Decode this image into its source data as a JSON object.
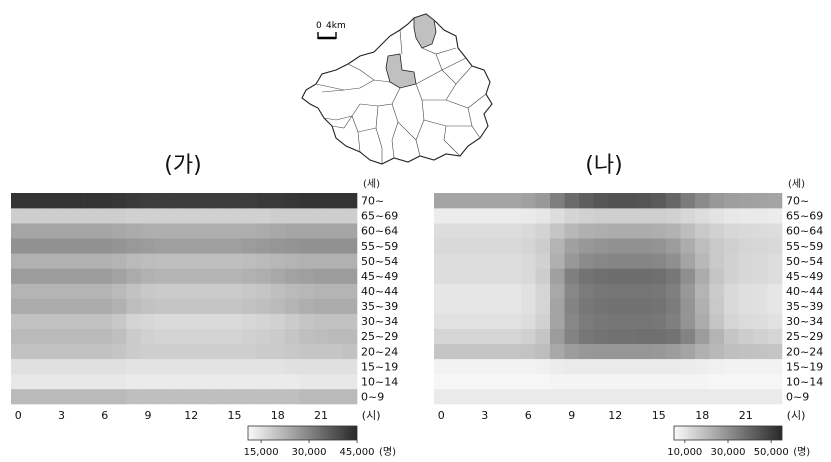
{
  "map": {
    "scale_zero": "0",
    "scale_dist": "4km"
  },
  "chart_data": [
    {
      "type": "heatmap",
      "title": "(가)",
      "x_ticks": [
        "0",
        "3",
        "6",
        "9",
        "12",
        "15",
        "18",
        "21"
      ],
      "x_unit": "(시)",
      "hours": 24,
      "y_unit": "(세)",
      "age_groups": [
        "0~9",
        "10~14",
        "15~19",
        "20~24",
        "25~29",
        "30~34",
        "35~39",
        "40~44",
        "45~49",
        "50~54",
        "55~59",
        "60~64",
        "65~69",
        "70~"
      ],
      "colorbar_ticks": [
        "15,000",
        "30,000",
        "45,000"
      ],
      "colorbar_unit": "(명)",
      "vmin": 10000,
      "vmax": 45000,
      "values": [
        [
          21000,
          21000,
          21000,
          21000,
          21000,
          21000,
          21000,
          21000,
          20000,
          20000,
          20000,
          20000,
          20000,
          20000,
          20000,
          20000,
          20000,
          20000,
          20000,
          20000,
          21000,
          21000,
          21000,
          21000
        ],
        [
          13000,
          13000,
          13000,
          13000,
          13000,
          13000,
          13000,
          13000,
          12500,
          12500,
          12500,
          12500,
          12500,
          12500,
          12500,
          12500,
          12500,
          12500,
          12500,
          12500,
          13000,
          13000,
          13000,
          13000
        ],
        [
          14500,
          14500,
          14500,
          14500,
          14500,
          14500,
          14500,
          14500,
          14000,
          14000,
          14000,
          14000,
          14000,
          14000,
          14000,
          14000,
          14000,
          14000,
          14000,
          14500,
          14500,
          14500,
          14500,
          14500
        ],
        [
          19500,
          19500,
          19500,
          19500,
          19500,
          19500,
          19500,
          19000,
          18000,
          17500,
          17500,
          17500,
          17500,
          17500,
          17500,
          17500,
          17500,
          18000,
          18000,
          18500,
          19000,
          19000,
          19000,
          19500
        ],
        [
          21000,
          21000,
          21000,
          21000,
          21000,
          21000,
          21000,
          20000,
          18000,
          17000,
          16500,
          16500,
          16500,
          16500,
          16500,
          16500,
          17000,
          17500,
          18000,
          19000,
          20000,
          20500,
          21000,
          21000
        ],
        [
          19500,
          19500,
          19500,
          19500,
          19500,
          19500,
          19500,
          18500,
          16500,
          16000,
          15500,
          15500,
          15500,
          15500,
          15500,
          15500,
          16000,
          16500,
          17000,
          18000,
          19000,
          19500,
          19500,
          19500
        ],
        [
          23500,
          23500,
          23500,
          23500,
          23500,
          23500,
          23500,
          22500,
          20500,
          19500,
          19000,
          19000,
          19000,
          19000,
          19000,
          19000,
          19500,
          20000,
          21000,
          22000,
          23000,
          23500,
          23500,
          23500
        ],
        [
          22000,
          22000,
          22000,
          22000,
          22000,
          22000,
          22000,
          21000,
          19500,
          18500,
          18000,
          18000,
          18000,
          18000,
          18000,
          18000,
          18500,
          19000,
          20000,
          21000,
          21500,
          22000,
          22000,
          22000
        ],
        [
          26000,
          26000,
          26000,
          26000,
          26000,
          26000,
          26000,
          25000,
          23500,
          22500,
          22000,
          22000,
          22000,
          22000,
          22000,
          22000,
          22500,
          23000,
          24000,
          25000,
          25500,
          26000,
          26000,
          26000
        ],
        [
          22500,
          22500,
          22500,
          22500,
          22500,
          22500,
          22500,
          22000,
          21000,
          20500,
          20000,
          20000,
          20000,
          20000,
          20000,
          20000,
          20500,
          21000,
          21500,
          22000,
          22500,
          22500,
          22500,
          22500
        ],
        [
          28000,
          28000,
          28000,
          28000,
          28000,
          28000,
          28000,
          27500,
          26500,
          26000,
          25500,
          25500,
          25500,
          25500,
          25500,
          25500,
          26000,
          26500,
          27000,
          27500,
          28000,
          28000,
          28000,
          28000
        ],
        [
          24500,
          24500,
          24500,
          24500,
          24500,
          24500,
          24500,
          24000,
          23500,
          23000,
          23000,
          23000,
          23000,
          23000,
          23000,
          23000,
          23000,
          23500,
          24000,
          24500,
          24500,
          24500,
          24500,
          24500
        ],
        [
          17500,
          17500,
          17500,
          17500,
          17500,
          17500,
          17500,
          17500,
          17000,
          17000,
          17000,
          17000,
          17000,
          17000,
          17000,
          17000,
          17000,
          17000,
          17500,
          17500,
          17500,
          17500,
          17500,
          17500
        ],
        [
          44000,
          44000,
          44000,
          44000,
          44000,
          44000,
          44000,
          43500,
          43000,
          42500,
          42500,
          42500,
          42500,
          42500,
          42500,
          42500,
          42500,
          43000,
          43000,
          43500,
          44000,
          44000,
          44000,
          44000
        ]
      ]
    },
    {
      "type": "heatmap",
      "title": "(나)",
      "x_ticks": [
        "0",
        "3",
        "6",
        "9",
        "12",
        "15",
        "18",
        "21"
      ],
      "x_unit": "(시)",
      "hours": 24,
      "y_unit": "(세)",
      "age_groups": [
        "0~9",
        "10~14",
        "15~19",
        "20~24",
        "25~29",
        "30~34",
        "35~39",
        "40~44",
        "45~49",
        "50~54",
        "55~59",
        "60~64",
        "65~69",
        "70~"
      ],
      "colorbar_ticks": [
        "10,000",
        "30,000",
        "50,000"
      ],
      "colorbar_unit": "(명)",
      "vmin": 5000,
      "vmax": 55000,
      "values": [
        [
          9000,
          9000,
          9000,
          9000,
          9000,
          9000,
          9000,
          9000,
          9000,
          9000,
          9000,
          9000,
          9000,
          9000,
          9000,
          9000,
          9000,
          9000,
          9000,
          9000,
          9000,
          9000,
          9000,
          9000
        ],
        [
          6000,
          6000,
          6000,
          6000,
          6000,
          6000,
          6000,
          6000,
          6500,
          6500,
          6500,
          6500,
          6500,
          6500,
          6500,
          6500,
          6500,
          6500,
          6500,
          6000,
          6000,
          6000,
          6000,
          6000
        ],
        [
          7000,
          7000,
          7000,
          7000,
          7000,
          7000,
          7000,
          7500,
          8500,
          9000,
          9000,
          9000,
          9000,
          9000,
          9000,
          9000,
          9000,
          8500,
          8000,
          7500,
          7000,
          7000,
          7000,
          7000
        ],
        [
          18000,
          18000,
          18000,
          18000,
          18000,
          18000,
          18500,
          20000,
          25000,
          28000,
          29000,
          29500,
          29500,
          29500,
          29500,
          29000,
          28000,
          26000,
          23000,
          21000,
          19500,
          19000,
          18500,
          18000
        ],
        [
          14000,
          14000,
          14000,
          14000,
          14000,
          14000,
          15000,
          18000,
          28000,
          34000,
          37000,
          38000,
          38500,
          38500,
          39000,
          39000,
          38000,
          34000,
          28000,
          22000,
          18000,
          16000,
          15000,
          14000
        ],
        [
          11000,
          11000,
          11000,
          11000,
          11000,
          11000,
          12000,
          15000,
          26000,
          33000,
          36000,
          37000,
          37500,
          37500,
          37500,
          37000,
          35000,
          30000,
          24000,
          18000,
          14000,
          12500,
          12000,
          11000
        ],
        [
          10000,
          10000,
          10000,
          10000,
          10000,
          10000,
          11000,
          14000,
          26000,
          34000,
          37000,
          38000,
          38500,
          38500,
          38500,
          38000,
          36000,
          30000,
          23000,
          17000,
          13000,
          11500,
          11000,
          10000
        ],
        [
          10000,
          10000,
          10000,
          10000,
          10000,
          10000,
          11000,
          14000,
          25000,
          33000,
          36000,
          37000,
          37500,
          37500,
          37500,
          37000,
          35000,
          29000,
          22000,
          16500,
          13000,
          11500,
          11000,
          10000
        ],
        [
          12000,
          12000,
          12000,
          12000,
          12000,
          12000,
          13000,
          16000,
          27000,
          35000,
          38000,
          39000,
          39500,
          39500,
          39500,
          39000,
          37000,
          31000,
          24000,
          18000,
          15000,
          13500,
          13000,
          12000
        ],
        [
          12000,
          12000,
          12000,
          12000,
          12000,
          12000,
          13000,
          15000,
          23000,
          29000,
          32000,
          33000,
          33500,
          33500,
          33500,
          33000,
          31000,
          26000,
          21000,
          17000,
          15000,
          13500,
          13000,
          12000
        ],
        [
          13000,
          13000,
          13000,
          13000,
          13000,
          13000,
          14000,
          16000,
          22000,
          27000,
          29000,
          30000,
          30500,
          30500,
          30500,
          30000,
          28000,
          24000,
          20000,
          17000,
          15500,
          14000,
          13500,
          13000
        ],
        [
          12000,
          12000,
          12000,
          12000,
          12000,
          12000,
          13000,
          14500,
          18000,
          21000,
          23000,
          23500,
          24000,
          24000,
          24000,
          23500,
          22500,
          20000,
          17000,
          15000,
          13500,
          13000,
          12500,
          12000
        ],
        [
          8500,
          8500,
          8500,
          8500,
          8500,
          8500,
          9000,
          10000,
          12000,
          14000,
          15000,
          15500,
          15500,
          15500,
          15500,
          15500,
          15000,
          13500,
          12000,
          10500,
          9500,
          9000,
          9000,
          8500
        ],
        [
          26000,
          26000,
          26000,
          26000,
          26000,
          26000,
          27000,
          29000,
          35000,
          40000,
          43000,
          45000,
          46000,
          46000,
          45500,
          44000,
          41000,
          36000,
          32000,
          29000,
          27500,
          27000,
          26500,
          26000
        ]
      ]
    }
  ]
}
